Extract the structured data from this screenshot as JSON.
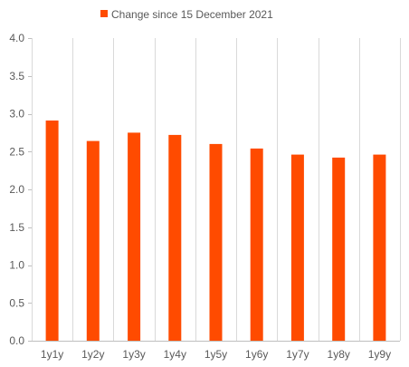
{
  "chart_data": {
    "type": "bar",
    "categories": [
      "1y1y",
      "1y2y",
      "1y3y",
      "1y4y",
      "1y5y",
      "1y6y",
      "1y7y",
      "1y8y",
      "1y9y"
    ],
    "series": [
      {
        "name": "Change since 15 December 2021",
        "values": [
          2.91,
          2.64,
          2.75,
          2.72,
          2.6,
          2.54,
          2.46,
          2.42,
          2.46
        ],
        "color": "#ff4b00"
      }
    ],
    "y_ticks": [
      "0.0",
      "0.5",
      "1.0",
      "1.5",
      "2.0",
      "2.5",
      "3.0",
      "3.5",
      "4.0"
    ],
    "ylim": [
      0,
      4
    ],
    "grid": "vertical category separators",
    "legend_position": "top-center"
  }
}
